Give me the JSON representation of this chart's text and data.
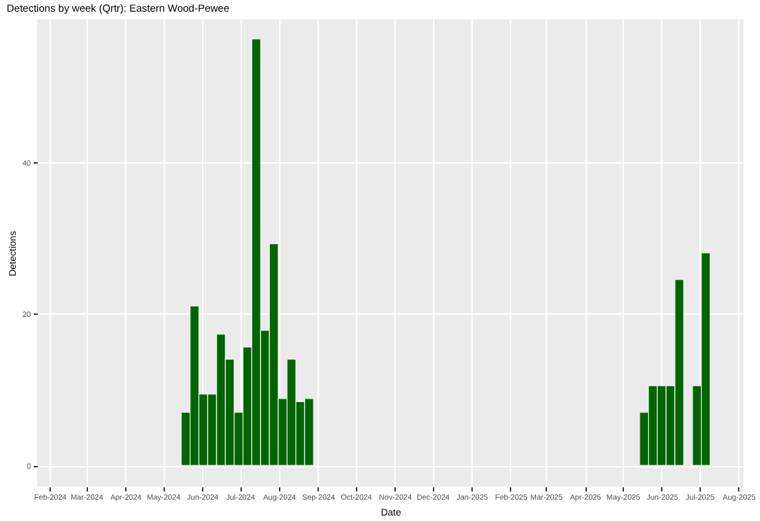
{
  "chart_data": {
    "type": "bar",
    "title": "Detections by week (Qrtr): Eastern Wood-Pewee",
    "xlabel": "Date",
    "ylabel": "Detections",
    "x": [
      "2024-05-19",
      "2024-05-26",
      "2024-06-02",
      "2024-06-09",
      "2024-06-16",
      "2024-06-23",
      "2024-06-30",
      "2024-07-07",
      "2024-07-14",
      "2024-07-21",
      "2024-07-28",
      "2024-08-04",
      "2024-08-11",
      "2024-08-18",
      "2024-08-25",
      "2025-05-18",
      "2025-05-25",
      "2025-06-01",
      "2025-06-08",
      "2025-06-15",
      "2025-06-29",
      "2025-07-06"
    ],
    "series": [
      {
        "color": "#006400",
        "values": [
          7,
          21,
          9.4,
          9.4,
          17.3,
          14,
          7,
          15.6,
          56.2,
          17.8,
          29.2,
          8.8,
          14,
          8.4,
          8.8,
          7,
          10.5,
          10.5,
          10.5,
          24.5,
          10.5,
          28
        ]
      }
    ],
    "xlim": [
      "2024-01-22",
      "2025-08-05"
    ],
    "xticks": [
      {
        "value": "2024-02-01",
        "label": "Feb-2024"
      },
      {
        "value": "2024-03-01",
        "label": "Mar-2024"
      },
      {
        "value": "2024-04-01",
        "label": "Apr-2024"
      },
      {
        "value": "2024-05-01",
        "label": "May-2024"
      },
      {
        "value": "2024-06-01",
        "label": "Jun-2024"
      },
      {
        "value": "2024-07-01",
        "label": "Jul-2024"
      },
      {
        "value": "2024-08-01",
        "label": "Aug-2024"
      },
      {
        "value": "2024-09-01",
        "label": "Sep-2024"
      },
      {
        "value": "2024-10-01",
        "label": "Oct-2024"
      },
      {
        "value": "2024-11-01",
        "label": "Nov-2024"
      },
      {
        "value": "2024-12-01",
        "label": "Dec-2024"
      },
      {
        "value": "2025-01-01",
        "label": "Jan-2025"
      },
      {
        "value": "2025-02-01",
        "label": "Feb-2025"
      },
      {
        "value": "2025-03-01",
        "label": "Mar-2025"
      },
      {
        "value": "2025-04-01",
        "label": "Apr-2025"
      },
      {
        "value": "2025-05-01",
        "label": "May-2025"
      },
      {
        "value": "2025-06-01",
        "label": "Jun-2025"
      },
      {
        "value": "2025-07-01",
        "label": "Jul-2025"
      },
      {
        "value": "2025-08-01",
        "label": "Aug-2025"
      }
    ],
    "ylim": [
      -2.8,
      58.8
    ],
    "yticks": [
      0,
      20,
      40
    ],
    "grid": true
  }
}
